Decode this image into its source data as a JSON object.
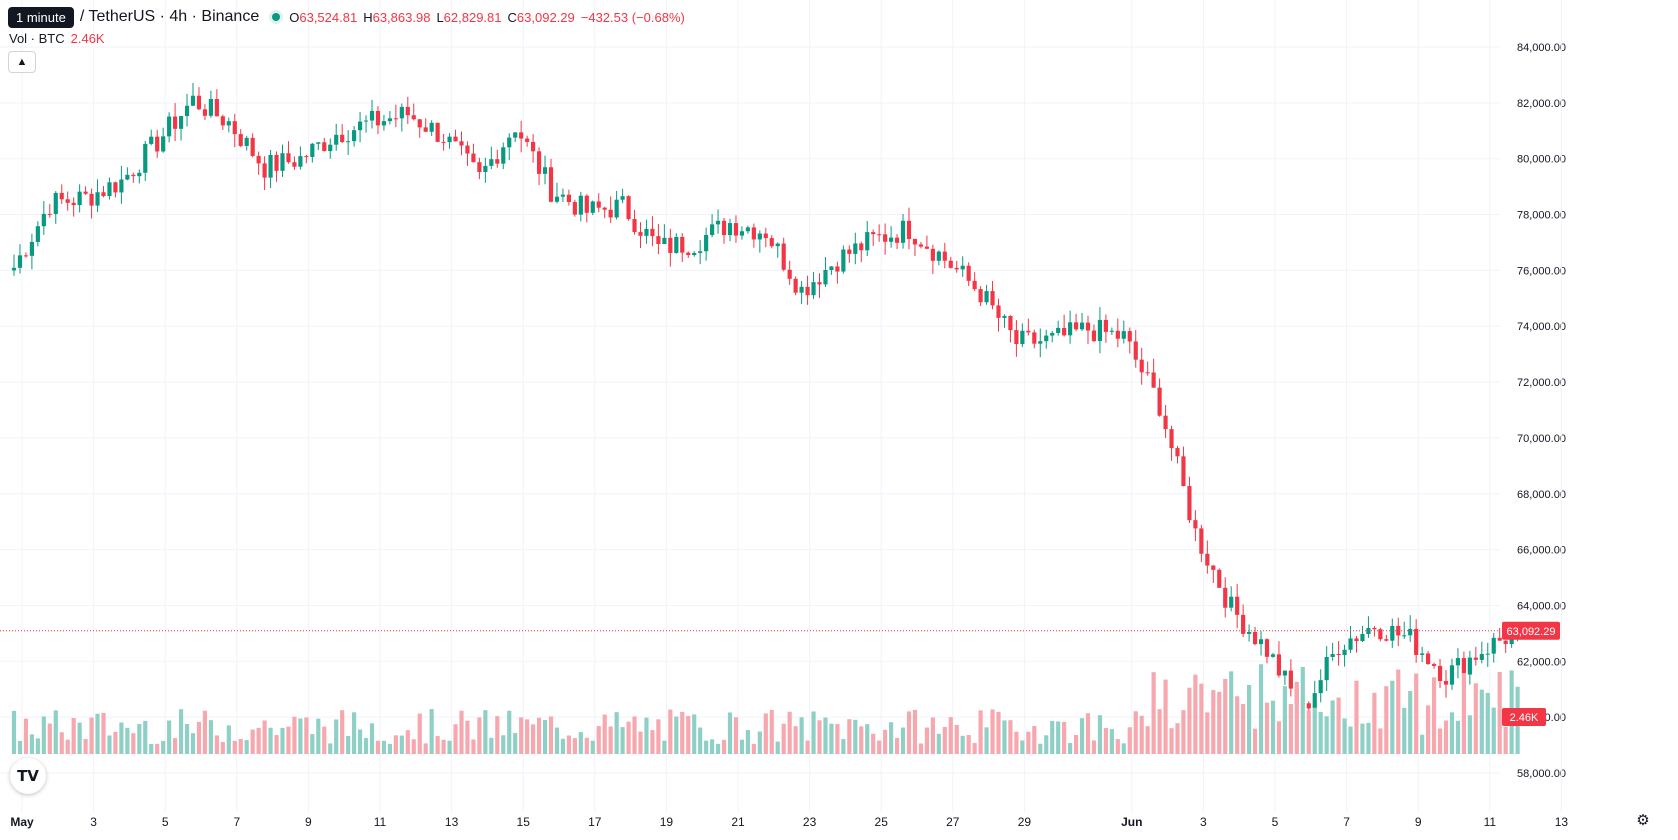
{
  "header": {
    "tooltip": "1 minute",
    "symbol": "/ TetherUS · 4h · Binance",
    "ohlc": {
      "o_label": "O",
      "o_value": "63,524.81",
      "h_label": "H",
      "h_value": "63,863.98",
      "l_label": "L",
      "l_value": "62,829.81",
      "c_label": "C",
      "c_value": "63,092.29"
    },
    "change": "−432.53 (−0.68%)"
  },
  "volume_legend": {
    "label": "Vol · BTC",
    "value": "2.46K"
  },
  "buttons": {
    "collapse_icon": "chevron-up-icon",
    "settings_icon": "gear-icon",
    "logo_text": "TV"
  },
  "colors": {
    "up": "#089981",
    "down": "#f23645",
    "up_volume": "#8fd0c6",
    "down_volume": "#f7a7ae",
    "grid": "#f0f3fa",
    "text": "#131722"
  },
  "chart_data": {
    "type": "candlestick",
    "interval": "4h",
    "ylim": [
      57000,
      85000
    ],
    "y_ticks": [
      "84,000.00",
      "82,000.00",
      "80,000.00",
      "78,000.00",
      "76,000.00",
      "74,000.00",
      "72,000.00",
      "70,000.00",
      "68,000.00",
      "66,000.00",
      "64,000.00",
      "62,000.00",
      "60,000.00",
      "58,000.00"
    ],
    "x_ticks": [
      "May",
      "3",
      "5",
      "7",
      "9",
      "11",
      "13",
      "15",
      "17",
      "19",
      "21",
      "23",
      "25",
      "27",
      "29",
      "Jun",
      "3",
      "5",
      "7",
      "9",
      "11",
      "13"
    ],
    "last_price": 63092.29,
    "last_price_label": "63,092.29",
    "last_volume_label": "2.46K",
    "close_path": [
      [
        "May 1",
        76100
      ],
      [
        "May 2",
        78400
      ],
      [
        "May 3",
        78600
      ],
      [
        "May 4",
        79200
      ],
      [
        "May 5",
        80600
      ],
      [
        "May 6",
        82100
      ],
      [
        "May 7",
        81300
      ],
      [
        "May 8",
        79700
      ],
      [
        "May 9",
        80000
      ],
      [
        "May 10",
        80900
      ],
      [
        "May 11",
        81300
      ],
      [
        "May 12",
        81600
      ],
      [
        "May 13",
        80800
      ],
      [
        "May 14",
        79300
      ],
      [
        "May 15",
        81200
      ],
      [
        "May 16",
        78900
      ],
      [
        "May 17",
        78100
      ],
      [
        "May 18",
        78300
      ],
      [
        "May 19",
        76800
      ],
      [
        "May 20",
        77000
      ],
      [
        "May 21",
        77700
      ],
      [
        "May 22",
        77400
      ],
      [
        "May 23",
        75300
      ],
      [
        "May 24",
        76400
      ],
      [
        "May 25",
        77100
      ],
      [
        "May 26",
        77500
      ],
      [
        "May 27",
        76400
      ],
      [
        "May 28",
        75200
      ],
      [
        "May 29",
        73400
      ],
      [
        "May 30",
        73500
      ],
      [
        "May 31",
        73900
      ],
      [
        "Jun 1",
        73600
      ],
      [
        "Jun 2",
        71200
      ],
      [
        "Jun 3",
        66600
      ],
      [
        "Jun 4",
        63900
      ],
      [
        "Jun 5",
        62400
      ],
      [
        "Jun 6",
        60200
      ],
      [
        "Jun 7",
        62600
      ],
      [
        "Jun 8",
        63300
      ],
      [
        "Jun 9",
        62800
      ],
      [
        "Jun 10",
        61500
      ],
      [
        "Jun 11",
        62400
      ],
      [
        "Jun 12",
        63092
      ]
    ]
  }
}
